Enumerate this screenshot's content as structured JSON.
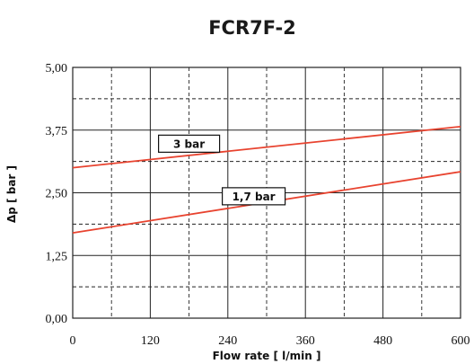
{
  "chart_data": {
    "type": "line",
    "title": "FCR7F-2",
    "xlabel": "Flow rate [ l/min ]",
    "ylabel": "Δp [ bar ]",
    "xlim": [
      0,
      600
    ],
    "ylim": [
      0,
      5
    ],
    "x_ticks": [
      "0",
      "120",
      "240",
      "360",
      "480",
      "600"
    ],
    "y_ticks": [
      "0,00",
      "1,25",
      "2,50",
      "3,75",
      "5,00"
    ],
    "grid": true,
    "series": [
      {
        "name": "3 bar",
        "x": [
          0,
          600
        ],
        "y": [
          3.0,
          3.82
        ],
        "color": "#e8432f"
      },
      {
        "name": "1,7 bar",
        "x": [
          0,
          600
        ],
        "y": [
          1.7,
          2.92
        ],
        "color": "#e8432f"
      }
    ]
  }
}
